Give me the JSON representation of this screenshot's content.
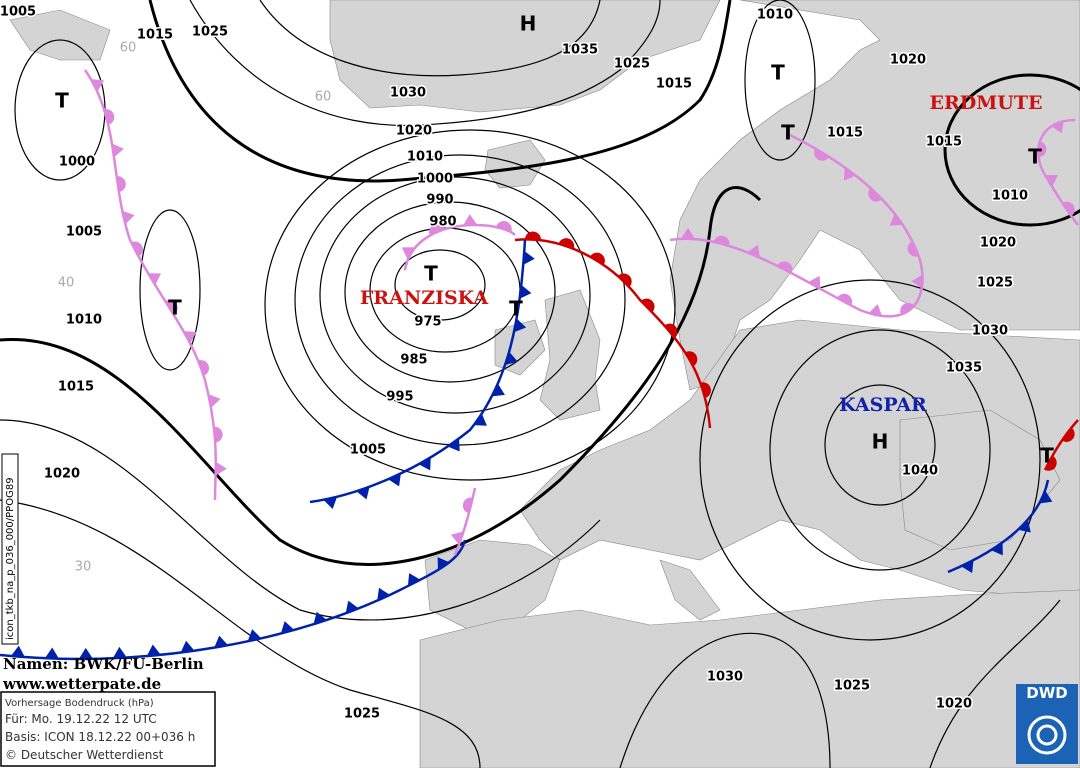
{
  "map": {
    "isobar_labels": [
      1005,
      1015,
      1025,
      1035,
      1025,
      1015,
      1030,
      1020,
      1010,
      1000,
      990,
      980,
      975,
      985,
      995,
      1005,
      1010,
      1020,
      1015,
      1015,
      1010,
      1020,
      1025,
      1030,
      1035,
      1040,
      1000,
      1005,
      1010,
      1015,
      1020,
      1030,
      1025,
      1020,
      1025
    ],
    "systems": [
      "T",
      "H",
      "T",
      "T",
      "T",
      "T",
      "T",
      "T",
      "H",
      "T"
    ],
    "names": [
      "FRANZISKA",
      "KASPAR",
      "ERDMUTE"
    ],
    "grid_labels": [
      "60",
      "60",
      "40",
      "30"
    ],
    "side_text": "icon_tkb_na_p_036_000/PPOG89"
  },
  "footer": {
    "credit": "Namen: BWK/FU-Berlin",
    "website": "www.wetterpate.de",
    "info": [
      "Vorhersage Bodendruck (hPa)",
      "Für:  Mo. 19.12.22  12 UTC",
      "Basis: ICON  18.12.22 00+036 h",
      "© Deutscher Wetterdienst"
    ],
    "logo": "DWD"
  }
}
